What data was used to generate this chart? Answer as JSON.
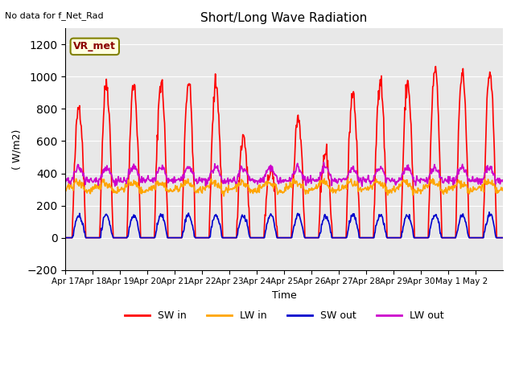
{
  "title": "Short/Long Wave Radiation",
  "xlabel": "Time",
  "ylabel": "( W/m2)",
  "top_left_text": "No data for f_Net_Rad",
  "legend_label": "VR_met",
  "ylim": [
    -200,
    1300
  ],
  "yticks": [
    -200,
    0,
    200,
    400,
    600,
    800,
    1000,
    1200
  ],
  "n_days": 16,
  "x_tick_labels": [
    "Apr 17",
    "Apr 18",
    "Apr 19",
    "Apr 20",
    "Apr 21",
    "Apr 22",
    "Apr 23",
    "Apr 24",
    "Apr 25",
    "Apr 26",
    "Apr 27",
    "Apr 28",
    "Apr 29",
    "Apr 30",
    "May 1",
    "May 2"
  ],
  "background_color": "#ffffff",
  "plot_bg_color": "#e8e8e8",
  "grid_color": "#ffffff",
  "sw_in_color": "#ff0000",
  "lw_in_color": "#ffa500",
  "sw_out_color": "#0000cd",
  "lw_out_color": "#cc00cc",
  "line_width": 1.2,
  "sw_in_peaks": [
    820,
    960,
    950,
    970,
    970,
    960,
    630,
    420,
    750,
    530,
    900,
    990,
    960,
    1040,
    1030,
    1030
  ]
}
